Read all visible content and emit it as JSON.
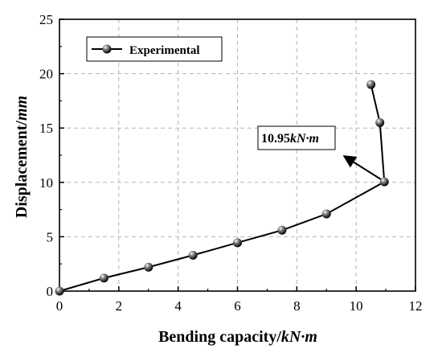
{
  "chart_data": {
    "type": "line",
    "xlabel": "Bending capacity/",
    "xlabel_unit": "kN·m",
    "ylabel": "Displacement/",
    "ylabel_unit": "mm",
    "xlim": [
      0,
      12
    ],
    "ylim": [
      0,
      25
    ],
    "xticks": [
      0,
      2,
      4,
      6,
      8,
      10,
      12
    ],
    "yticks": [
      0,
      5,
      10,
      15,
      20,
      25
    ],
    "grid": true,
    "legend_position": "top-left",
    "series": [
      {
        "name": "Experimental",
        "color": "#000000",
        "marker": "sphere",
        "x": [
          0,
          1.5,
          3.0,
          4.5,
          6.0,
          7.5,
          9.0,
          10.95,
          10.8,
          10.5
        ],
        "y": [
          0,
          1.2,
          2.2,
          3.3,
          4.45,
          5.6,
          7.1,
          10.05,
          15.5,
          19.0
        ]
      }
    ],
    "annotations": [
      {
        "text_value": "10.95",
        "text_unit": "kN·m",
        "point": [
          10.95,
          10.05
        ]
      }
    ]
  }
}
